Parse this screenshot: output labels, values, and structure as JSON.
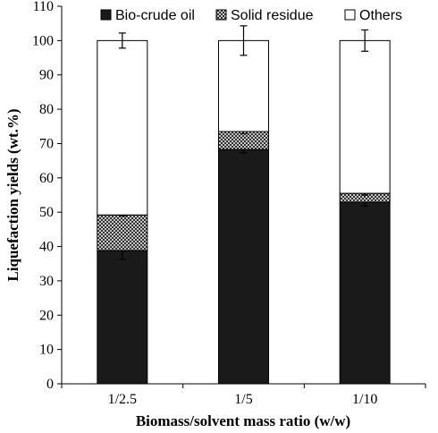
{
  "chart_data": {
    "type": "bar",
    "stacked": true,
    "categories": [
      "1/2.5",
      "1/5",
      "1/10"
    ],
    "xlabel": "Biomass/solvent mass ratio (w/w)",
    "ylabel": "Liquefaction yields (wt.%)",
    "ylim": [
      0,
      110
    ],
    "yticks": [
      0,
      10,
      20,
      30,
      40,
      50,
      60,
      70,
      80,
      90,
      100,
      110
    ],
    "grid": false,
    "legend_position": "top",
    "series": [
      {
        "name": "Bio-crude oil",
        "values": [
          38.8,
          68.3,
          52.9
        ],
        "errors": [
          2.5,
          1.0,
          1.1
        ],
        "color": "#1a1a1a",
        "pattern": "solid"
      },
      {
        "name": "Solid residue",
        "values": [
          10.4,
          5.2,
          2.6
        ],
        "errors": [
          0.3,
          0.6,
          0.5
        ],
        "color": "#555555",
        "pattern": "crosshatch"
      },
      {
        "name": "Others",
        "values": [
          50.8,
          26.5,
          44.5
        ],
        "errors": [
          2.2,
          4.3,
          3.1
        ],
        "color": "#ffffff",
        "pattern": "none"
      }
    ]
  }
}
